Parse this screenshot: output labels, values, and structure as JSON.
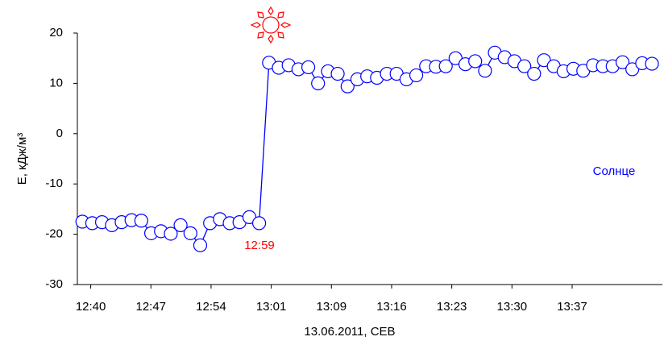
{
  "chart_data": {
    "type": "line",
    "x_label": "13.06.2011, СЕВ",
    "y_label": "E, кДж/м³",
    "annotations": [
      {
        "text": "12:59",
        "color": "#ff0000"
      }
    ],
    "x": [
      759.0,
      760.18,
      761.35,
      762.53,
      763.7,
      764.88,
      766.05,
      767.23,
      768.4,
      769.58,
      770.75,
      771.93,
      773.1,
      774.28,
      775.45,
      776.63,
      777.8,
      778.98,
      780.15,
      781.33,
      782.5,
      783.68,
      784.85,
      786.03,
      787.2,
      788.38,
      789.55,
      790.73,
      791.9,
      793.08,
      794.25,
      795.43,
      796.6,
      797.78,
      798.95,
      800.13,
      801.3,
      802.48,
      803.65,
      804.83,
      806.0,
      807.18,
      808.35,
      809.53,
      810.7,
      811.88,
      813.05,
      814.23,
      815.4,
      816.58,
      817.75,
      818.93,
      820.1,
      821.28,
      822.45,
      823.63,
      824.8,
      825.98,
      827.15
    ],
    "series": [
      {
        "name": "Солнце",
        "color": "#0000ff",
        "values": [
          -17.5,
          -17.8,
          -17.6,
          -18.2,
          -17.6,
          -17.2,
          -17.3,
          -19.8,
          -19.4,
          -19.9,
          -18.2,
          -19.8,
          -22.2,
          -17.8,
          -17.0,
          -17.8,
          -17.6,
          -16.6,
          -17.8,
          14.1,
          13.1,
          13.6,
          12.8,
          13.2,
          10.0,
          12.4,
          11.9,
          9.4,
          10.8,
          11.4,
          11.1,
          11.9,
          11.9,
          10.8,
          11.6,
          13.4,
          13.3,
          13.4,
          15.0,
          13.8,
          14.4,
          12.5,
          16.1,
          15.2,
          14.4,
          13.4,
          11.9,
          14.6,
          13.4,
          12.4,
          12.9,
          12.5,
          13.6,
          13.4,
          13.4,
          14.2,
          12.8,
          14.0,
          13.9
        ]
      }
    ],
    "xlim": [
      758.4,
      828.4
    ],
    "xticks": [
      {
        "value": 760,
        "label": "12:40"
      },
      {
        "value": 767.2,
        "label": "12:47"
      },
      {
        "value": 774.4,
        "label": "12:54"
      },
      {
        "value": 781.6,
        "label": "13:01"
      },
      {
        "value": 788.8,
        "label": "13:09"
      },
      {
        "value": 796,
        "label": "13:16"
      },
      {
        "value": 803.2,
        "label": "13:23"
      },
      {
        "value": 810.4,
        "label": "13:30"
      },
      {
        "value": 817.6,
        "label": "13:37"
      }
    ],
    "ylim": [
      -30,
      20
    ],
    "yticks": [
      -30,
      -20,
      -10,
      0,
      10,
      20
    ]
  }
}
